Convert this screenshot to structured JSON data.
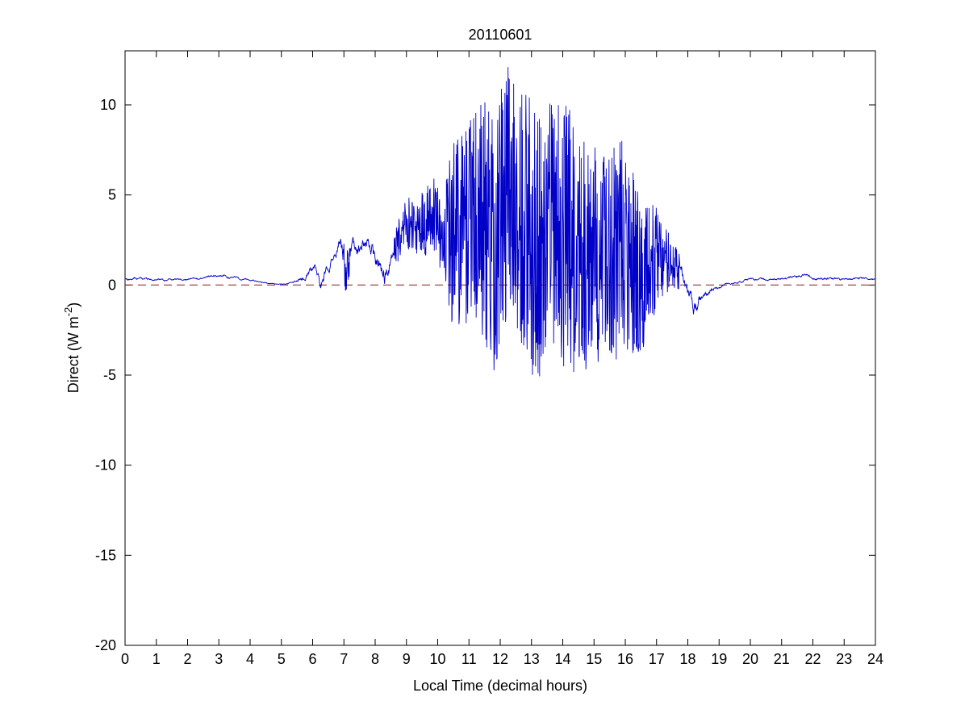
{
  "figure": {
    "background": "#ffffff",
    "axis_color": "#000000"
  },
  "ylabel_parts": {
    "main": "Direct (W m",
    "sup": "-2",
    "close": ")"
  },
  "chart_data": {
    "type": "line",
    "title": "20110601",
    "xlabel": "Local Time (decimal hours)",
    "ylabel": "Direct (W m^-2)",
    "xlim": [
      0,
      24
    ],
    "ylim": [
      -20,
      13
    ],
    "x_ticks": [
      0,
      1,
      2,
      3,
      4,
      5,
      6,
      7,
      8,
      9,
      10,
      11,
      12,
      13,
      14,
      15,
      16,
      17,
      18,
      19,
      20,
      21,
      22,
      23,
      24
    ],
    "y_ticks": [
      -20,
      -15,
      -10,
      -5,
      0,
      5,
      10
    ],
    "grid": false,
    "legend": null,
    "series": [
      {
        "name": "direct-irradiance",
        "color": "#0000c8",
        "line_width": 0.9,
        "sample_step": 0.01,
        "seed": 20110601,
        "clip": [
          -7.2,
          12.6
        ],
        "envelope_comment": "triples of [hour, mean, noise_amplitude] estimated from plot",
        "envelope": [
          [
            0.0,
            0.35,
            0.15
          ],
          [
            1.0,
            0.3,
            0.12
          ],
          [
            1.5,
            0.25,
            0.1
          ],
          [
            2.0,
            0.3,
            0.1
          ],
          [
            2.8,
            0.5,
            0.12
          ],
          [
            3.2,
            0.5,
            0.12
          ],
          [
            4.0,
            0.25,
            0.1
          ],
          [
            4.6,
            0.08,
            0.06
          ],
          [
            5.0,
            0.05,
            0.05
          ],
          [
            5.4,
            0.15,
            0.12
          ],
          [
            5.8,
            0.6,
            0.35
          ],
          [
            6.1,
            0.8,
            0.5
          ],
          [
            6.25,
            0.0,
            0.7
          ],
          [
            6.5,
            1.2,
            0.6
          ],
          [
            6.9,
            2.6,
            0.8
          ],
          [
            7.05,
            0.6,
            1.2
          ],
          [
            7.3,
            2.2,
            0.9
          ],
          [
            7.6,
            2.6,
            0.8
          ],
          [
            7.9,
            1.8,
            1.0
          ],
          [
            8.3,
            0.3,
            1.0
          ],
          [
            8.6,
            2.0,
            1.0
          ],
          [
            9.0,
            3.2,
            1.6
          ],
          [
            9.5,
            3.4,
            1.8
          ],
          [
            10.0,
            3.8,
            2.4
          ],
          [
            10.5,
            2.5,
            5.5
          ],
          [
            11.0,
            3.5,
            5.5
          ],
          [
            11.5,
            4.0,
            7.0
          ],
          [
            11.8,
            2.5,
            7.5
          ],
          [
            12.3,
            5.5,
            7.0
          ],
          [
            12.7,
            4.0,
            7.5
          ],
          [
            13.1,
            2.0,
            8.5
          ],
          [
            13.5,
            3.5,
            6.5
          ],
          [
            14.0,
            3.0,
            7.5
          ],
          [
            14.5,
            1.8,
            7.0
          ],
          [
            15.0,
            1.8,
            6.0
          ],
          [
            15.5,
            1.5,
            6.0
          ],
          [
            16.0,
            2.0,
            6.2
          ],
          [
            16.5,
            0.3,
            4.5
          ],
          [
            17.0,
            1.6,
            2.8
          ],
          [
            17.5,
            1.2,
            1.4
          ],
          [
            17.9,
            0.4,
            0.7
          ],
          [
            18.2,
            -1.2,
            0.9
          ],
          [
            18.5,
            -0.7,
            0.5
          ],
          [
            18.8,
            -0.2,
            0.25
          ],
          [
            19.2,
            0.0,
            0.1
          ],
          [
            19.6,
            0.15,
            0.1
          ],
          [
            20.0,
            0.3,
            0.12
          ],
          [
            21.0,
            0.35,
            0.12
          ],
          [
            21.7,
            0.5,
            0.15
          ],
          [
            22.3,
            0.35,
            0.15
          ],
          [
            23.0,
            0.3,
            0.12
          ],
          [
            23.5,
            0.4,
            0.12
          ],
          [
            24.0,
            0.3,
            0.1
          ]
        ]
      },
      {
        "name": "zero-reference-line",
        "color": "#993333",
        "style": "dashed",
        "y": 0,
        "line_width": 1.1,
        "dash": [
          10,
          6
        ]
      }
    ]
  }
}
